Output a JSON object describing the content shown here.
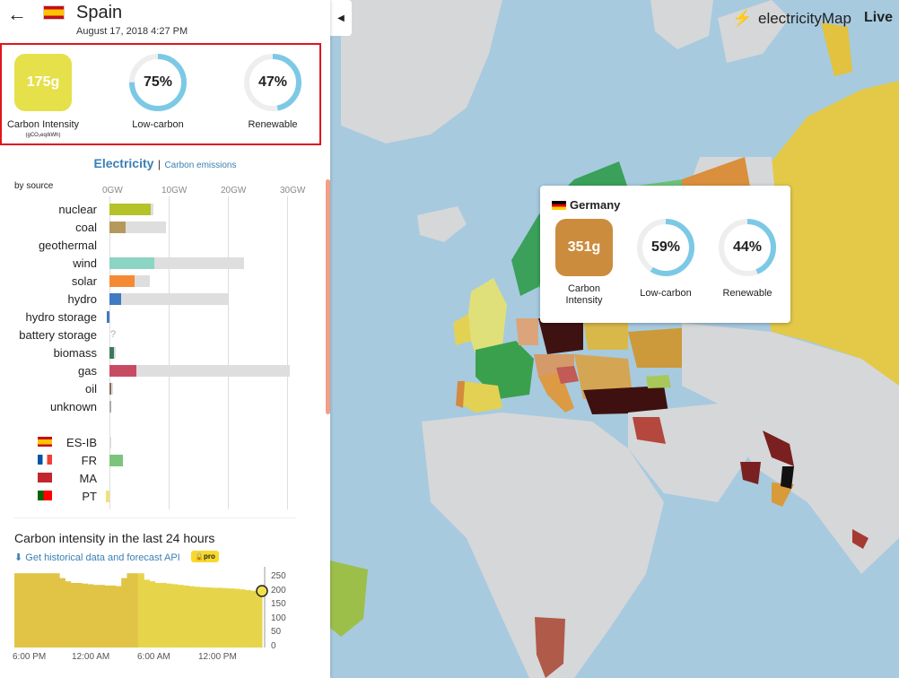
{
  "header": {
    "back_icon": "arrow-left-icon",
    "country": "Spain",
    "datetime": "August 17, 2018 4:27 PM"
  },
  "summary": {
    "carbon_intensity_value": "175g",
    "carbon_intensity_label": "Carbon Intensity",
    "carbon_intensity_unit": "(gCO₂eq/kWh)",
    "low_carbon_value": "75%",
    "low_carbon_fraction": 0.75,
    "low_carbon_label": "Low-carbon",
    "renewable_value": "47%",
    "renewable_fraction": 0.47,
    "renewable_label": "Renewable"
  },
  "mode": {
    "active": "Electricity",
    "separator": "|",
    "inactive": "Carbon emissions"
  },
  "production": {
    "by_source_label": "by source",
    "ticks": [
      "0GW",
      "10GW",
      "20GW",
      "30GW"
    ],
    "sources": [
      {
        "name": "nuclear",
        "value_gw": 7.0,
        "capacity_gw": 7.4,
        "color": "#b5c22a"
      },
      {
        "name": "coal",
        "value_gw": 2.7,
        "capacity_gw": 9.5,
        "color": "#b5995a"
      },
      {
        "name": "geothermal",
        "value_gw": 0,
        "capacity_gw": 0,
        "color": "#a0563a"
      },
      {
        "name": "wind",
        "value_gw": 7.6,
        "capacity_gw": 22.8,
        "color": "#8cd4c4"
      },
      {
        "name": "solar",
        "value_gw": 4.2,
        "capacity_gw": 6.8,
        "color": "#f58a35"
      },
      {
        "name": "hydro",
        "value_gw": 2.0,
        "capacity_gw": 20.0,
        "color": "#3f7ac2"
      },
      {
        "name": "hydro storage",
        "value_gw": -0.5,
        "capacity_gw": 0,
        "color": "#3f7ac2"
      },
      {
        "name": "battery storage",
        "value_gw": null,
        "capacity_gw": 0,
        "color": "#999999",
        "unknown_mark": "?"
      },
      {
        "name": "biomass",
        "value_gw": 0.8,
        "capacity_gw": 1.1,
        "color": "#3c7a5a"
      },
      {
        "name": "gas",
        "value_gw": 4.5,
        "capacity_gw": 30.5,
        "color": "#c74c63"
      },
      {
        "name": "oil",
        "value_gw": 0.3,
        "capacity_gw": 0.6,
        "color": "#866a5a"
      },
      {
        "name": "unknown",
        "value_gw": 0.3,
        "capacity_gw": 0.3,
        "color": "#aaaaaa"
      }
    ]
  },
  "exchanges": [
    {
      "name": "ES-IB",
      "value_gw": 0.3,
      "color": "#dddddd",
      "flag": "spain-flag-icon"
    },
    {
      "name": "FR",
      "value_gw": 2.3,
      "color": "#7cc47a",
      "flag": "france-flag-icon"
    },
    {
      "name": "MA",
      "value_gw": 0,
      "color": "#dddddd",
      "flag": "morocco-flag-icon"
    },
    {
      "name": "PT",
      "value_gw": -0.6,
      "color": "#f2e27a",
      "flag": "portugal-flag-icon"
    }
  ],
  "history": {
    "title": "Carbon intensity in the last 24 hours",
    "download_icon": "download-icon",
    "download_label": "Get historical data and forecast API",
    "pro_badge": "pro",
    "y_ticks": [
      "250",
      "200",
      "150",
      "100",
      "50",
      "0"
    ],
    "x_ticks": [
      "6:00 PM",
      "12:00 AM",
      "6:00 AM",
      "12:00 PM"
    ],
    "chart_data": {
      "type": "area",
      "ylim": [
        0,
        250
      ],
      "values": [
        230,
        230,
        230,
        230,
        230,
        230,
        230,
        230,
        215,
        205,
        200,
        200,
        198,
        196,
        194,
        194,
        192,
        192,
        190,
        215,
        230,
        230,
        230,
        210,
        205,
        200,
        200,
        198,
        196,
        194,
        192,
        190,
        188,
        187,
        186,
        185,
        185,
        184,
        183,
        182,
        180,
        178,
        176,
        175
      ]
    }
  },
  "toolbar": {
    "collapse_icon": "triangle-left-icon",
    "brand_icon": "electricitymap-logo-icon",
    "brand_name": "electricityMap",
    "live_label": "Live"
  },
  "tooltip": {
    "flag": "germany-flag-icon",
    "country": "Germany",
    "carbon_intensity_value": "351g",
    "carbon_intensity_label": "Carbon Intensity",
    "low_carbon_value": "59%",
    "low_carbon_fraction": 0.59,
    "low_carbon_label": "Low-carbon",
    "renewable_value": "44%",
    "renewable_fraction": 0.44,
    "renewable_label": "Renewable"
  }
}
